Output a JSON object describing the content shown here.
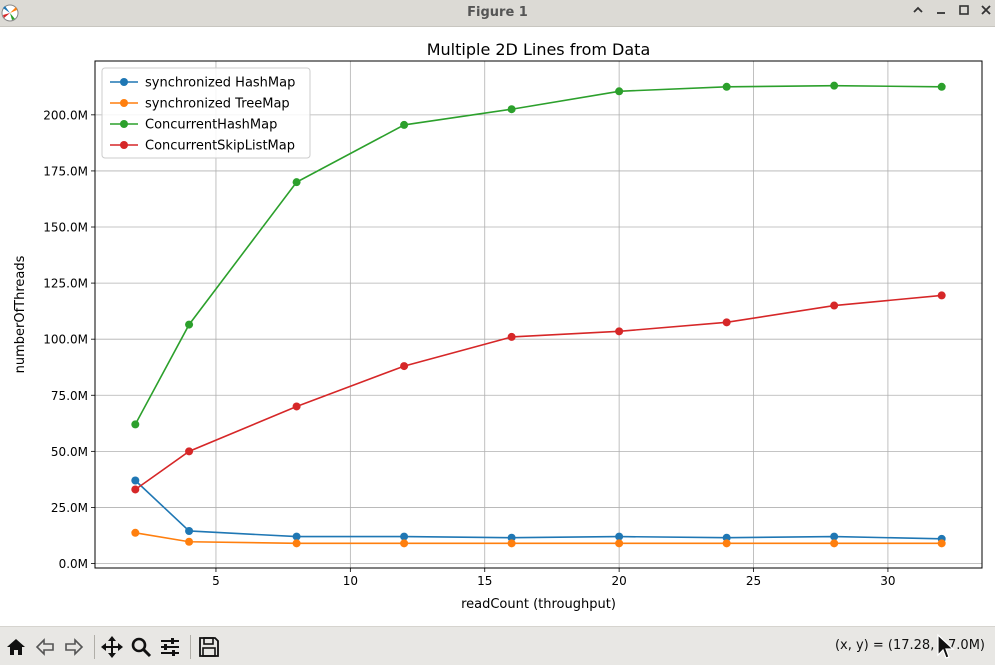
{
  "window": {
    "title": "Figure 1"
  },
  "toolbar": {
    "coords": "(x, y) = (17.28, 1 7.0M)"
  },
  "icons": {
    "app": "matplotlib-icon",
    "minimize": "chevron-up-icon",
    "restore": "minimize-icon",
    "maximize": "maximize-icon",
    "close": "close-icon",
    "home": "home-icon",
    "back": "arrow-left-icon",
    "forward": "arrow-right-icon",
    "pan": "move-icon",
    "zoom": "magnifier-icon",
    "configure": "sliders-icon",
    "save": "floppy-disk-icon"
  },
  "chart_data": {
    "type": "line",
    "title": "Multiple 2D Lines from Data",
    "xlabel": "readCount (throughput)",
    "ylabel": "numberOfThreads",
    "x": [
      2,
      4,
      8,
      12,
      16,
      20,
      24,
      28,
      32
    ],
    "xlim": [
      0.5,
      33.5
    ],
    "ylim": [
      -2000000,
      224000000
    ],
    "xticks": [
      5,
      10,
      15,
      20,
      25,
      30
    ],
    "yticks": [
      0,
      25000000,
      50000000,
      75000000,
      100000000,
      125000000,
      150000000,
      175000000,
      200000000
    ],
    "ytick_labels": [
      "0.0M",
      "25.0M",
      "50.0M",
      "75.0M",
      "100.0M",
      "125.0M",
      "150.0M",
      "175.0M",
      "200.0M"
    ],
    "grid": true,
    "legend_position": "upper-left",
    "series": [
      {
        "name": "synchronized HashMap",
        "color": "#1f77b4",
        "values": [
          37000000,
          14500000,
          12000000,
          12000000,
          11500000,
          12000000,
          11500000,
          12000000,
          11000000
        ]
      },
      {
        "name": "synchronized TreeMap",
        "color": "#ff7f0e",
        "values": [
          13700000,
          9700000,
          9000000,
          9000000,
          9000000,
          9000000,
          9000000,
          9000000,
          9000000
        ]
      },
      {
        "name": "ConcurrentHashMap",
        "color": "#2ca02c",
        "values": [
          62000000,
          106500000,
          170000000,
          195500000,
          202500000,
          210500000,
          212500000,
          213000000,
          212500000
        ]
      },
      {
        "name": "ConcurrentSkipListMap",
        "color": "#d62728",
        "values": [
          33000000,
          50000000,
          70000000,
          88000000,
          101000000,
          103500000,
          107500000,
          115000000,
          119500000
        ]
      }
    ]
  }
}
